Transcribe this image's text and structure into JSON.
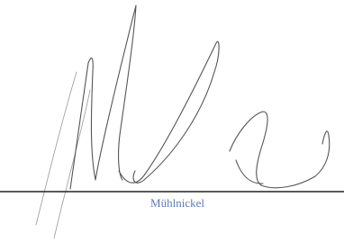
{
  "signature": {
    "name": "Mühlnickel"
  }
}
